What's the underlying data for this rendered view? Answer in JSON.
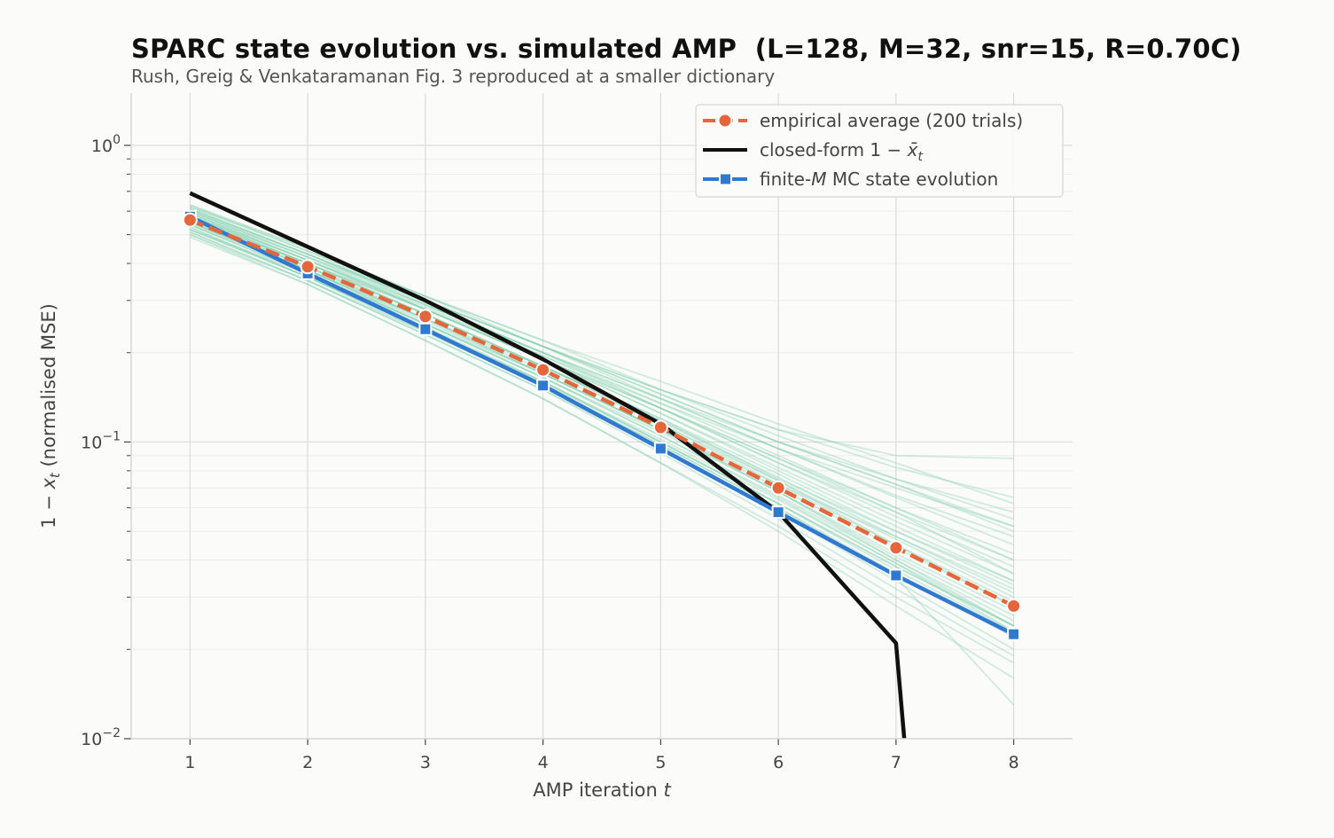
{
  "chart_data": {
    "type": "line",
    "title": "SPARC state evolution vs. simulated AMP  (L=128, M=32, snr=15, R=0.70C)",
    "subtitle": "Rush, Greig & Venkataramanan Fig. 3 reproduced at a smaller dictionary",
    "xlabel": "AMP iteration t",
    "ylabel": "1 − x_t  (normalised MSE)",
    "y_scale": "log",
    "xlim": [
      0.5,
      8.5
    ],
    "ylim": [
      0.01,
      1.5
    ],
    "x": [
      1,
      2,
      3,
      4,
      5,
      6,
      7,
      8
    ],
    "x_ticks": [
      "1",
      "2",
      "3",
      "4",
      "5",
      "6",
      "7",
      "8"
    ],
    "y_ticks": [
      {
        "value": 1,
        "label": "10^0"
      },
      {
        "value": 0.1,
        "label": "10^−1"
      },
      {
        "value": 0.01,
        "label": "10^−2"
      }
    ],
    "grid": true,
    "legend_position": "top-right",
    "series": [
      {
        "name": "empirical average (200 trials)",
        "style": "dashed-circle",
        "color": "#e4663a",
        "values": [
          0.56,
          0.39,
          0.265,
          0.175,
          0.112,
          0.07,
          0.044,
          0.028
        ]
      },
      {
        "name": "closed-form 1 − x̄_t",
        "style": "solid",
        "color": "#111111",
        "x": [
          1,
          2,
          3,
          4,
          5,
          6,
          7,
          7.07
        ],
        "values": [
          0.69,
          0.455,
          0.3,
          0.19,
          0.115,
          0.058,
          0.021,
          0.01
        ]
      },
      {
        "name": "finite-M MC state evolution",
        "style": "solid-square",
        "color": "#2f79d0",
        "values": [
          0.575,
          0.37,
          0.24,
          0.155,
          0.095,
          0.058,
          0.0355,
          0.0225
        ]
      }
    ],
    "trials_color": "#7fcfb0",
    "trials": [
      [
        0.52,
        0.36,
        0.24,
        0.16,
        0.1,
        0.062,
        0.038,
        0.024
      ],
      [
        0.55,
        0.38,
        0.26,
        0.17,
        0.11,
        0.072,
        0.048,
        0.032
      ],
      [
        0.6,
        0.42,
        0.29,
        0.2,
        0.13,
        0.085,
        0.058,
        0.04
      ],
      [
        0.49,
        0.34,
        0.22,
        0.14,
        0.085,
        0.052,
        0.03,
        0.018
      ],
      [
        0.58,
        0.4,
        0.27,
        0.18,
        0.12,
        0.075,
        0.05,
        0.034
      ],
      [
        0.63,
        0.44,
        0.3,
        0.21,
        0.14,
        0.095,
        0.065,
        0.045
      ],
      [
        0.54,
        0.37,
        0.25,
        0.17,
        0.11,
        0.068,
        0.041,
        0.026
      ],
      [
        0.57,
        0.39,
        0.26,
        0.18,
        0.115,
        0.072,
        0.045,
        0.029
      ],
      [
        0.5,
        0.35,
        0.23,
        0.15,
        0.095,
        0.058,
        0.034,
        0.02
      ],
      [
        0.61,
        0.43,
        0.3,
        0.21,
        0.145,
        0.1,
        0.072,
        0.052
      ],
      [
        0.56,
        0.38,
        0.25,
        0.165,
        0.105,
        0.066,
        0.04,
        0.025
      ],
      [
        0.59,
        0.41,
        0.28,
        0.19,
        0.125,
        0.08,
        0.052,
        0.034
      ],
      [
        0.53,
        0.36,
        0.235,
        0.155,
        0.098,
        0.06,
        0.036,
        0.022
      ],
      [
        0.62,
        0.44,
        0.31,
        0.22,
        0.16,
        0.115,
        0.085,
        0.062
      ],
      [
        0.55,
        0.39,
        0.27,
        0.18,
        0.118,
        0.076,
        0.048,
        0.031
      ],
      [
        0.51,
        0.35,
        0.23,
        0.15,
        0.092,
        0.055,
        0.032,
        0.019
      ],
      [
        0.58,
        0.41,
        0.29,
        0.2,
        0.14,
        0.1,
        0.075,
        0.058
      ],
      [
        0.56,
        0.4,
        0.27,
        0.18,
        0.12,
        0.078,
        0.05,
        0.033
      ],
      [
        0.6,
        0.42,
        0.28,
        0.19,
        0.13,
        0.088,
        0.06,
        0.042
      ],
      [
        0.52,
        0.37,
        0.25,
        0.165,
        0.108,
        0.068,
        0.042,
        0.027
      ],
      [
        0.57,
        0.4,
        0.28,
        0.195,
        0.135,
        0.095,
        0.07,
        0.052
      ],
      [
        0.54,
        0.37,
        0.245,
        0.16,
        0.1,
        0.062,
        0.037,
        0.023
      ],
      [
        0.61,
        0.43,
        0.295,
        0.2,
        0.135,
        0.09,
        0.06,
        0.04
      ],
      [
        0.5,
        0.34,
        0.22,
        0.14,
        0.085,
        0.05,
        0.028,
        0.016
      ],
      [
        0.59,
        0.42,
        0.3,
        0.21,
        0.15,
        0.11,
        0.082,
        0.065
      ],
      [
        0.55,
        0.38,
        0.255,
        0.17,
        0.11,
        0.07,
        0.044,
        0.028
      ],
      [
        0.58,
        0.4,
        0.27,
        0.18,
        0.118,
        0.074,
        0.045,
        0.028
      ],
      [
        0.53,
        0.36,
        0.24,
        0.158,
        0.1,
        0.062,
        0.038,
        0.024
      ],
      [
        0.62,
        0.45,
        0.31,
        0.22,
        0.15,
        0.105,
        0.075,
        0.055
      ],
      [
        0.56,
        0.39,
        0.26,
        0.17,
        0.11,
        0.068,
        0.04,
        0.024
      ],
      [
        0.6,
        0.43,
        0.3,
        0.21,
        0.15,
        0.11,
        0.09,
        0.088
      ],
      [
        0.57,
        0.4,
        0.28,
        0.19,
        0.13,
        0.085,
        0.056,
        0.038
      ],
      [
        0.54,
        0.38,
        0.26,
        0.175,
        0.115,
        0.074,
        0.047,
        0.03
      ],
      [
        0.59,
        0.41,
        0.28,
        0.19,
        0.125,
        0.082,
        0.054,
        0.036
      ],
      [
        0.52,
        0.36,
        0.24,
        0.16,
        0.102,
        0.064,
        0.039,
        0.024
      ],
      [
        0.61,
        0.43,
        0.29,
        0.2,
        0.14,
        0.095,
        0.066,
        0.048
      ],
      [
        0.55,
        0.38,
        0.25,
        0.165,
        0.105,
        0.065,
        0.039,
        0.023
      ],
      [
        0.58,
        0.41,
        0.285,
        0.195,
        0.13,
        0.088,
        0.058,
        0.036
      ],
      [
        0.51,
        0.35,
        0.235,
        0.155,
        0.098,
        0.06,
        0.035,
        0.013
      ],
      [
        0.63,
        0.45,
        0.31,
        0.21,
        0.145,
        0.1,
        0.072,
        0.05
      ]
    ]
  }
}
